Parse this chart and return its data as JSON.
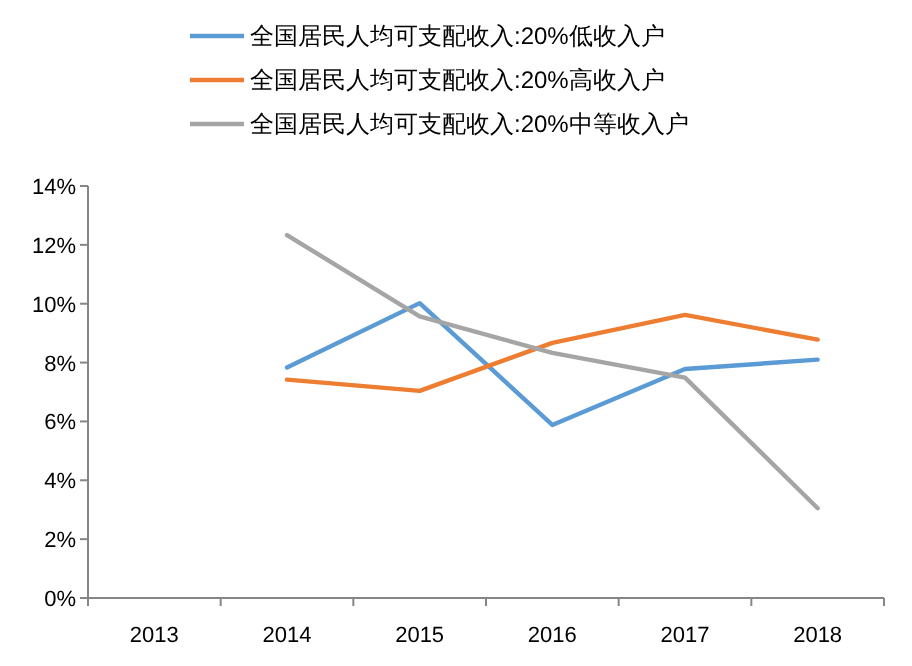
{
  "chart_data": {
    "type": "line",
    "categories": [
      "2013",
      "2014",
      "2015",
      "2016",
      "2017",
      "2018"
    ],
    "series": [
      {
        "name": "全国居民人均可支配收入:20%低收入户",
        "color": "#5b9bd5",
        "values": [
          null,
          7.83,
          10.02,
          5.88,
          7.78,
          8.1
        ]
      },
      {
        "name": "全国居民人均可支配收入:20%高收入户",
        "color": "#ed7d31",
        "values": [
          null,
          7.42,
          7.04,
          8.67,
          9.62,
          8.78
        ]
      },
      {
        "name": "全国居民人均可支配收入:20%中等收入户",
        "color": "#a5a5a5",
        "values": [
          null,
          12.33,
          9.57,
          8.33,
          7.49,
          3.05
        ]
      }
    ],
    "ylim": [
      0,
      14
    ],
    "yticks": [
      {
        "value": 0,
        "label": "0%"
      },
      {
        "value": 2,
        "label": "2%"
      },
      {
        "value": 4,
        "label": "4%"
      },
      {
        "value": 6,
        "label": "6%"
      },
      {
        "value": 8,
        "label": "8%"
      },
      {
        "value": 10,
        "label": "10%"
      },
      {
        "value": 12,
        "label": "12%"
      },
      {
        "value": 14,
        "label": "14%"
      }
    ],
    "legend": "top",
    "grid": false,
    "marker": "none",
    "line_style": "solid"
  }
}
